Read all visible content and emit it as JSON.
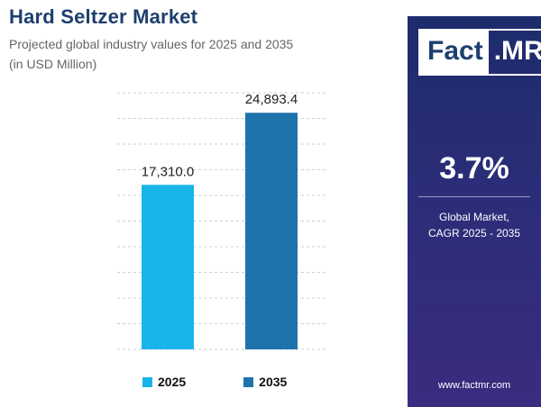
{
  "header": {
    "title": "Hard Seltzer Market",
    "subtitle": "Projected global industry values for 2025 and 2035 (in USD Million)"
  },
  "colors": {
    "series_2025": "#19b5ea",
    "series_2035": "#1f73ad",
    "panel": "#2b2d78",
    "title": "#1e3f6e"
  },
  "sidebar": {
    "logo_fact": "Fact",
    "logo_mr": ".MR",
    "cagr_value": "3.7%",
    "cagr_label_line1": "Global Market,",
    "cagr_label_line2": "CAGR 2025 - 2035",
    "website": "www.factmr.com"
  },
  "chart_data": {
    "type": "bar",
    "title": "Hard Seltzer Market",
    "subtitle": "Projected global industry values for 2025 and 2035 (in USD Million)",
    "categories": [
      "2025",
      "2035"
    ],
    "values": [
      17310.0,
      24893.4
    ],
    "data_labels": [
      "17,310.0",
      "24,893.4"
    ],
    "colors": [
      "#19b5ea",
      "#1f73ad"
    ],
    "ylim": [
      0,
      27000
    ],
    "grid": true,
    "legend": "bottom",
    "legend_entries": [
      "2025",
      "2035"
    ]
  }
}
